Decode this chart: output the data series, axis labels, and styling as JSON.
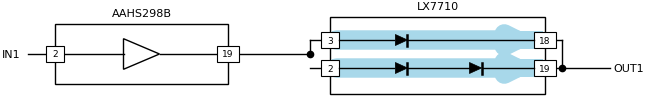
{
  "bg_color": "#ffffff",
  "line_color": "#000000",
  "in_label": "IN1",
  "out_label": "OUT1",
  "aahs_label": "AAHS298B",
  "lx_label": "LX7710",
  "pin_2_left": "2",
  "pin_19_aahs": "19",
  "pin_2_lx": "2",
  "pin_3_lx": "3",
  "pin_19_lx": "19",
  "pin_18_lx": "18",
  "arrow_fill": "#a8d8ea",
  "figw": 6.58,
  "figh": 1.13,
  "dpi": 100
}
